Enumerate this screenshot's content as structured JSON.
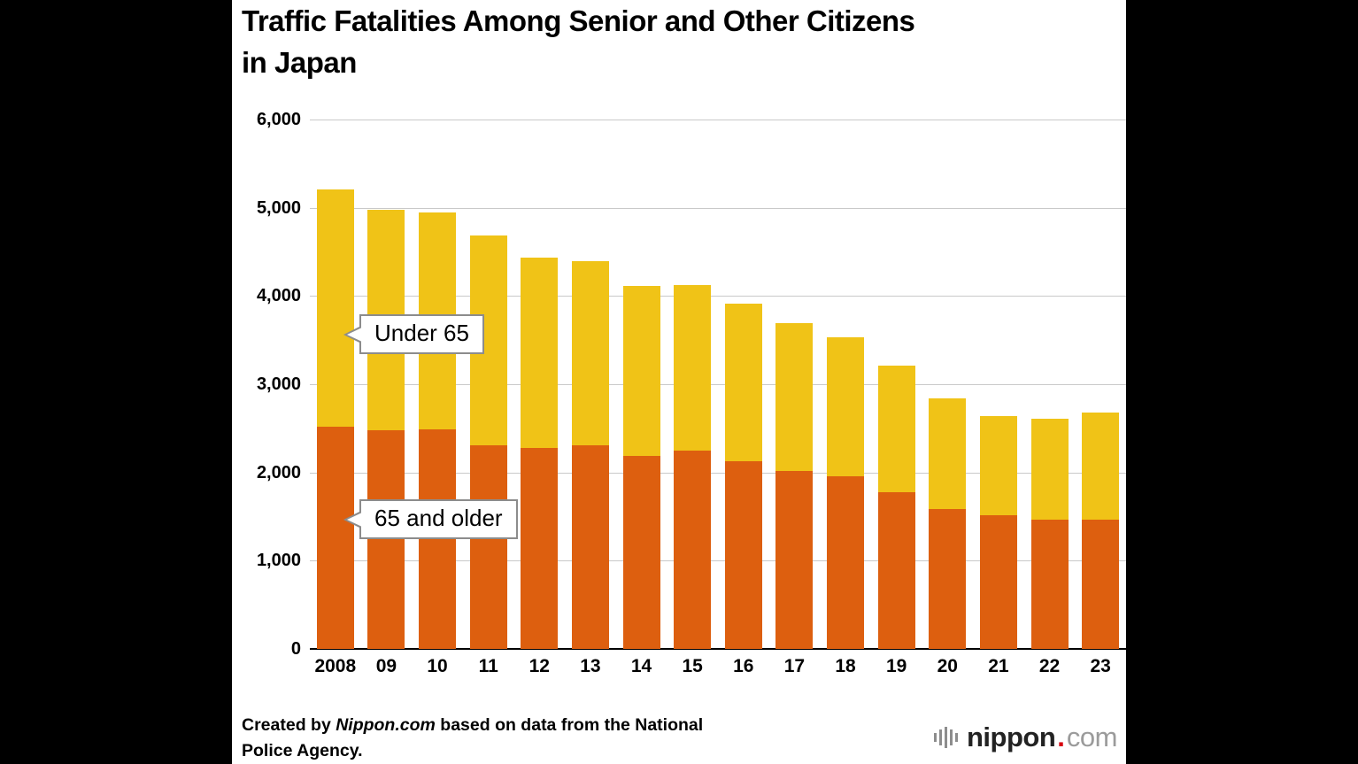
{
  "title": "Traffic Fatalities Among Senior and Other Citizens in Japan",
  "title_lines": [
    "Traffic Fatalities Among Senior and Other Citizens",
    "in Japan"
  ],
  "chart_data": {
    "type": "bar",
    "stacked": true,
    "title": "Traffic Fatalities Among Senior and Other Citizens in Japan",
    "categories": [
      "2008",
      "09",
      "10",
      "11",
      "12",
      "13",
      "14",
      "15",
      "16",
      "17",
      "18",
      "19",
      "20",
      "21",
      "22",
      "23"
    ],
    "series": [
      {
        "name": "65 and older",
        "color": "#dd5f0f",
        "values": [
          2520,
          2480,
          2490,
          2310,
          2280,
          2310,
          2190,
          2250,
          2130,
          2020,
          1960,
          1780,
          1590,
          1520,
          1470,
          1470
        ]
      },
      {
        "name": "Under 65",
        "color": "#f0c317",
        "values": [
          2690,
          2500,
          2460,
          2380,
          2150,
          2080,
          1920,
          1870,
          1780,
          1670,
          1570,
          1430,
          1250,
          1120,
          1140,
          1210
        ]
      }
    ],
    "totals": [
      5210,
      4980,
      4950,
      4690,
      4430,
      4390,
      4110,
      4120,
      3910,
      3690,
      3530,
      3210,
      2840,
      2640,
      2610,
      2680
    ],
    "ylim": [
      0,
      6000
    ],
    "yticks": [
      {
        "value": 0,
        "label": "0"
      },
      {
        "value": 1000,
        "label": "1,000"
      },
      {
        "value": 2000,
        "label": "2,000"
      },
      {
        "value": 3000,
        "label": "3,000"
      },
      {
        "value": 4000,
        "label": "4,000"
      },
      {
        "value": 5000,
        "label": "5,000"
      },
      {
        "value": 6000,
        "label": "6,000"
      }
    ],
    "xlabel": "",
    "ylabel": "",
    "grid": true,
    "legend_position": "inline-callouts"
  },
  "footer": {
    "created_prefix": "Created by ",
    "source_name": "Nippon.com",
    "created_suffix": " based on data from the National",
    "line2": "Police Agency."
  },
  "logo": {
    "brand": "nippon",
    "dot": ".",
    "tld": "com"
  },
  "colors": {
    "background": "#ffffff",
    "letterbox": "#000000",
    "senior_bar": "#dd5f0f",
    "under65_bar": "#f0c317",
    "grid": "#c9c9c9",
    "baseline": "#000000",
    "callout_border": "#8c8c8c",
    "logo_red": "#d7000f"
  }
}
